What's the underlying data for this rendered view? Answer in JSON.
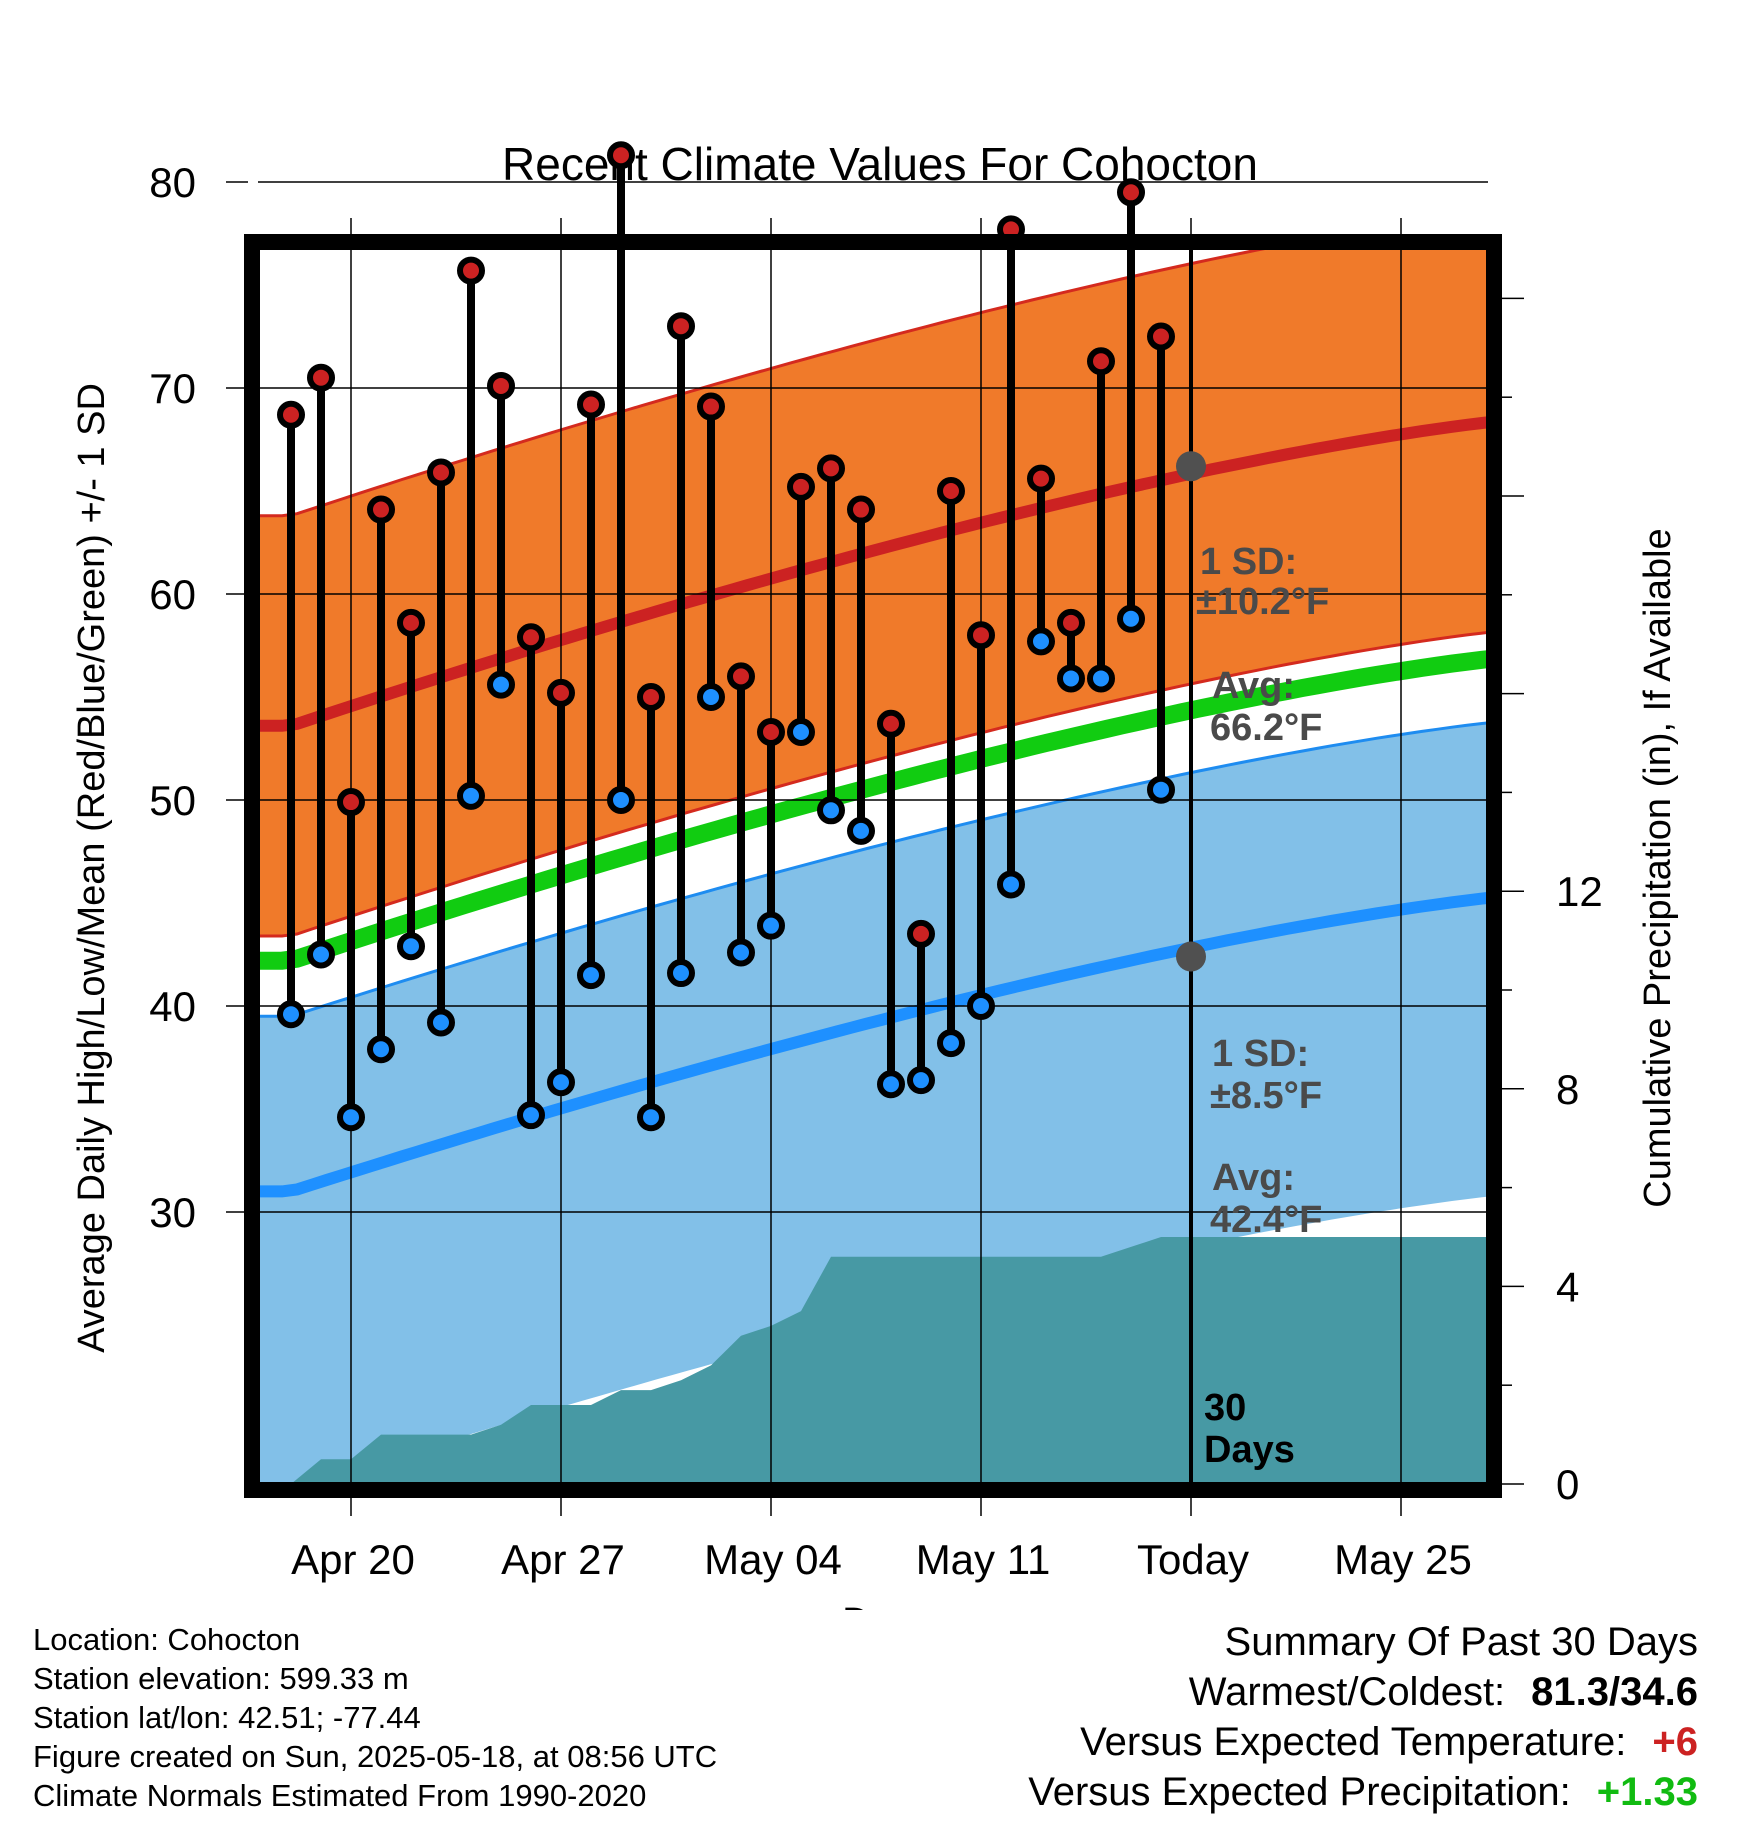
{
  "chart_data": {
    "type": "line",
    "title": "Recent Climate Values For Cohocton",
    "xlabel": "Day",
    "ylabel": "Average Daily High/Low/Mean (Red/Blue/Green) +/- 1 SD",
    "y2label": "Cumulative Precipitation (in), If Available",
    "x_ticks": [
      "Apr 20",
      "Apr 27",
      "May 04",
      "May 11",
      "Today",
      "May 25"
    ],
    "ylim": [
      27,
      86
    ],
    "y_ticks": [
      30,
      40,
      50,
      60,
      70,
      80
    ],
    "y2lim": [
      0,
      24
    ],
    "y2_ticks": [
      0,
      4,
      8,
      12
    ],
    "x": [
      "Apr 18",
      "Apr 19",
      "Apr 20",
      "Apr 21",
      "Apr 22",
      "Apr 23",
      "Apr 24",
      "Apr 25",
      "Apr 26",
      "Apr 27",
      "Apr 28",
      "Apr 29",
      "Apr 30",
      "May 01",
      "May 02",
      "May 03",
      "May 04",
      "May 05",
      "May 06",
      "May 07",
      "May 08",
      "May 09",
      "May 10",
      "May 11",
      "May 12",
      "May 13",
      "May 14",
      "May 15",
      "May 16",
      "May 17"
    ],
    "series": [
      {
        "name": "High",
        "color": "#cc2222",
        "values": [
          68.7,
          70.5,
          49.9,
          64.1,
          58.6,
          65.9,
          75.7,
          70.1,
          57.9,
          55.2,
          69.2,
          81.3,
          55.0,
          73.0,
          69.1,
          56.0,
          53.3,
          65.2,
          66.1,
          64.1,
          53.7,
          43.5,
          65.0,
          58.0,
          77.7,
          65.6,
          58.6,
          71.3,
          79.5,
          72.5
        ]
      },
      {
        "name": "Low",
        "color": "#1e90ff",
        "values": [
          39.6,
          42.5,
          34.6,
          37.9,
          42.9,
          39.2,
          50.2,
          55.6,
          34.7,
          36.3,
          41.5,
          50.0,
          34.6,
          41.6,
          55.0,
          42.6,
          43.9,
          53.3,
          49.5,
          48.5,
          36.2,
          36.4,
          38.2,
          40.0,
          45.9,
          57.7,
          55.9,
          55.9,
          58.8,
          50.5
        ]
      }
    ],
    "normals": {
      "high": {
        "start": 53.6,
        "end": 68.6,
        "today": 66.2,
        "sd": 10.2,
        "color": "#cc2222",
        "band_color": "#f07a2a"
      },
      "mean": {
        "start": 42.2,
        "end": 57.1,
        "color": "#11cc11"
      },
      "low": {
        "start": 31.0,
        "end": 45.5,
        "today": 42.4,
        "sd": 8.5,
        "color": "#1e90ff",
        "band_color": "#82c0e8"
      }
    },
    "precipitation": {
      "name": "Cumulative Precipitation",
      "color": "#4799a4",
      "values": [
        0.0,
        0.5,
        0.5,
        1.0,
        1.0,
        1.0,
        1.0,
        1.2,
        1.6,
        1.6,
        1.6,
        1.9,
        1.9,
        2.1,
        2.4,
        3.0,
        3.2,
        3.5,
        4.6,
        4.6,
        4.6,
        4.6,
        4.6,
        4.6,
        4.6,
        4.6,
        4.6,
        4.6,
        4.8,
        5.0
      ]
    },
    "annotations": {
      "high_sd_label": "1 SD:",
      "high_sd_value": "±10.2°F",
      "high_avg_label": "Avg:",
      "high_avg_value": "66.2°F",
      "low_sd_label": "1 SD:",
      "low_sd_value": "±8.5°F",
      "low_avg_label": "Avg:",
      "low_avg_value": "42.4°F",
      "days_line1": "30",
      "days_line2": "Days"
    }
  },
  "station": {
    "location": "Location: Cohocton",
    "elevation": "Station elevation: 599.33 m",
    "latlon": "Station lat/lon: 42.51; -77.44",
    "created": "Figure created on Sun, 2025-05-18, at 08:56 UTC",
    "normals": "Climate Normals Estimated From 1990-2020"
  },
  "summary": {
    "title": "Summary Of Past 30 Days",
    "warm_cold_label": "Warmest/Coldest:",
    "warm_cold_value": "81.3/34.6",
    "temp_label": "Versus Expected Temperature:",
    "temp_value": "+6",
    "temp_color": "#cc2222",
    "precip_label": "Versus Expected Precipitation:",
    "precip_value": "+1.33",
    "precip_color": "#11bb11"
  }
}
